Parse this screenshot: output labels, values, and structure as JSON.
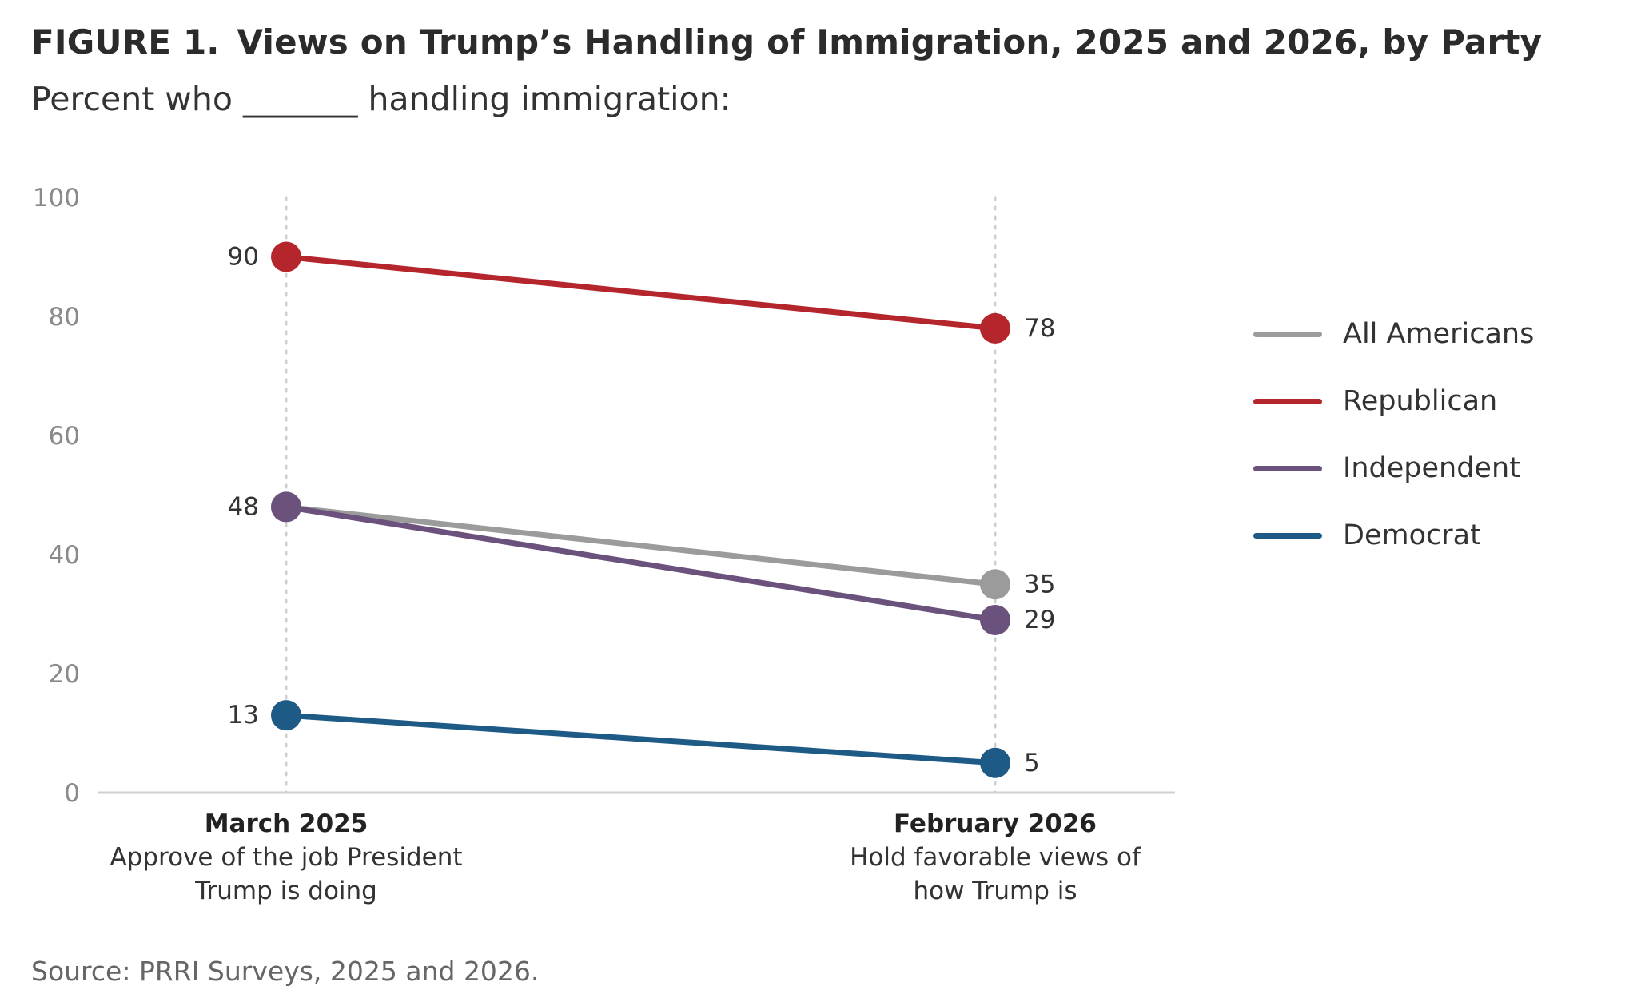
{
  "header": {
    "figure_label": "FIGURE 1.",
    "title": "Views on Trump’s Handling of Immigration, 2025 and 2026, by Party",
    "subtitle": "Percent who _______ handling immigration:"
  },
  "source": "Source: PRRI Surveys, 2025 and 2026.",
  "chart_data": {
    "type": "line",
    "title": "Views on Trump’s Handling of Immigration, 2025 and 2026, by Party",
    "subtitle": "Percent who _______ handling immigration:",
    "ylim": [
      0,
      100
    ],
    "yticks": [
      0,
      20,
      40,
      60,
      80,
      100
    ],
    "grid": false,
    "legend_position": "right",
    "categories": [
      {
        "label": "March 2025",
        "desc": [
          "Approve of the job President",
          "Trump is doing"
        ]
      },
      {
        "label": "February 2026",
        "desc": [
          "Hold favorable views of",
          "how Trump is"
        ]
      }
    ],
    "series": [
      {
        "name": "All Americans",
        "color": "#9b9b9b",
        "values": [
          48,
          35
        ]
      },
      {
        "name": "Republican",
        "color": "#b5262c",
        "values": [
          90,
          78
        ]
      },
      {
        "name": "Independent",
        "color": "#6b527c",
        "values": [
          48,
          29
        ]
      },
      {
        "name": "Democrat",
        "color": "#1d5a85",
        "values": [
          13,
          5
        ]
      }
    ]
  }
}
